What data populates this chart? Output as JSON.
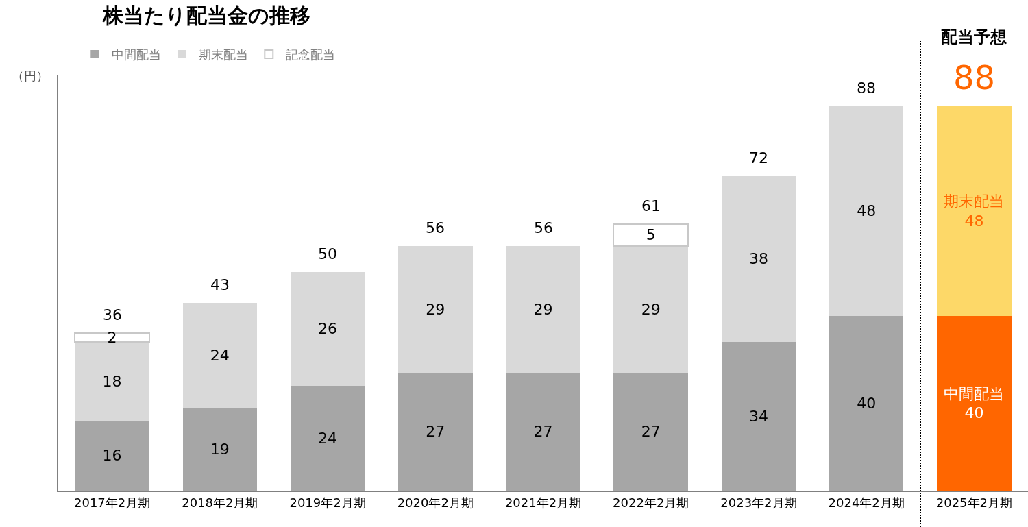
{
  "chart_data": {
    "type": "bar",
    "title": "株当たり配当金の推移",
    "ylabel": "（円）",
    "stacked": true,
    "data_labels": true,
    "legend": "top left",
    "tick_labels": "x",
    "grid": false,
    "categories": [
      "2017年2月期",
      "2018年2月期",
      "2019年2月期",
      "2020年2月期",
      "2021年2月期",
      "2022年2月期",
      "2023年2月期",
      "2024年2月期",
      "2025年2月期"
    ],
    "ylim": [
      0,
      95
    ],
    "series": [
      {
        "name": "中間配当",
        "color": "#a6a6a6",
        "colors": [
          "#a6a6a6",
          "#a6a6a6",
          "#a6a6a6",
          "#a6a6a6",
          "#a6a6a6",
          "#a6a6a6",
          "#a6a6a6",
          "#a6a6a6",
          "#ff6600"
        ],
        "values": [
          16,
          19,
          24,
          27,
          27,
          27,
          34,
          40,
          40
        ],
        "value_labels": [
          "16",
          "19",
          "24",
          "27",
          "27",
          "27",
          "34",
          "40",
          "中間配当\n40"
        ]
      },
      {
        "name": "期末配当",
        "color": "#d9d9d9",
        "colors": [
          "#d9d9d9",
          "#d9d9d9",
          "#d9d9d9",
          "#d9d9d9",
          "#d9d9d9",
          "#d9d9d9",
          "#d9d9d9",
          "#d9d9d9",
          "#fdd868"
        ],
        "values": [
          18,
          24,
          26,
          29,
          29,
          29,
          38,
          48,
          48
        ],
        "value_labels": [
          "18",
          "24",
          "26",
          "29",
          "29",
          "29",
          "38",
          "48",
          "期末配当\n48"
        ]
      },
      {
        "name": "記念配当",
        "color": "#ffffff",
        "values": [
          2,
          null,
          null,
          null,
          null,
          5,
          null,
          null,
          null
        ]
      }
    ],
    "totals": [
      "36",
      "43",
      "50",
      "56",
      "56",
      "61",
      "72",
      "88",
      "88"
    ],
    "annotations": [
      "配当予想"
    ]
  }
}
